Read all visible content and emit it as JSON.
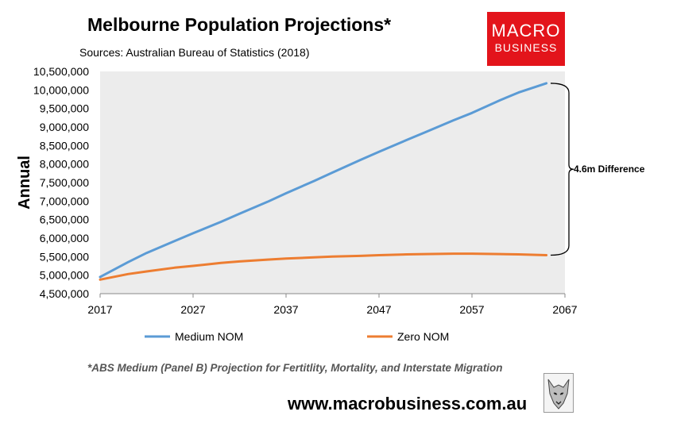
{
  "header": {
    "title": "Melbourne Population Projections*",
    "subtitle": "Sources: Australian Bureau of Statistics (2018)"
  },
  "logo": {
    "line1": "MACRO",
    "line2": "BUSINESS",
    "color": "#e3141b"
  },
  "footer": {
    "footnote": "*ABS Medium (Panel B) Projection for Fertitlity, Mortality, and Interstate Migration",
    "website": "www.macrobusiness.com.au"
  },
  "annotation": {
    "text": "4.6m Difference"
  },
  "chart_data": {
    "type": "line",
    "ylabel": "Annual",
    "xlim": [
      2017,
      2067
    ],
    "ylim": [
      4500000,
      10500000
    ],
    "x_ticks": [
      2017,
      2027,
      2037,
      2047,
      2057,
      2067
    ],
    "y_ticks": [
      4500000,
      5000000,
      5500000,
      6000000,
      6500000,
      7000000,
      7500000,
      8000000,
      8500000,
      9000000,
      9500000,
      10000000,
      10500000
    ],
    "y_tick_labels": [
      "4,500,000",
      "5,000,000",
      "5,500,000",
      "6,000,000",
      "6,500,000",
      "7,000,000",
      "7,500,000",
      "8,000,000",
      "8,500,000",
      "9,000,000",
      "9,500,000",
      "10,000,000",
      "10,500,000"
    ],
    "x_tick_labels": [
      "2017",
      "2027",
      "2037",
      "2047",
      "2057",
      "2067"
    ],
    "grid": false,
    "plot_background": "#ececec",
    "legend_position": "bottom",
    "series": [
      {
        "name": "Medium NOM",
        "color": "#5b9bd5",
        "x": [
          2017,
          2020,
          2022,
          2025,
          2027,
          2030,
          2032,
          2035,
          2037,
          2040,
          2042,
          2045,
          2047,
          2050,
          2052,
          2055,
          2057,
          2060,
          2062,
          2065
        ],
        "y": [
          4950000,
          5350000,
          5600000,
          5920000,
          6130000,
          6440000,
          6660000,
          6980000,
          7210000,
          7540000,
          7770000,
          8110000,
          8330000,
          8650000,
          8860000,
          9180000,
          9380000,
          9720000,
          9930000,
          10180000
        ]
      },
      {
        "name": "Zero NOM",
        "color": "#ed7d31",
        "x": [
          2017,
          2020,
          2022,
          2025,
          2027,
          2030,
          2032,
          2035,
          2037,
          2040,
          2042,
          2045,
          2047,
          2050,
          2052,
          2055,
          2057,
          2060,
          2062,
          2065
        ],
        "y": [
          4880000,
          5030000,
          5100000,
          5200000,
          5250000,
          5330000,
          5370000,
          5420000,
          5450000,
          5480000,
          5500000,
          5520000,
          5540000,
          5560000,
          5570000,
          5580000,
          5580000,
          5570000,
          5560000,
          5540000
        ]
      }
    ]
  }
}
